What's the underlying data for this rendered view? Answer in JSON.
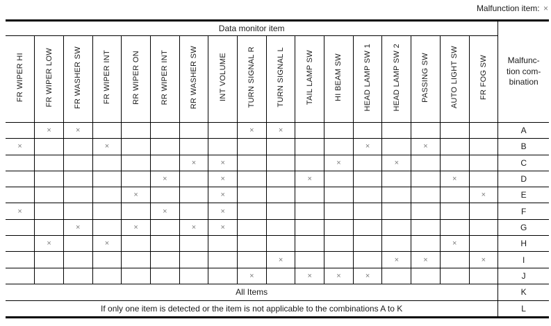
{
  "legend": {
    "label": "Malfunction item:",
    "mark": "×"
  },
  "table": {
    "title": "Data monitor item",
    "combination_header": "Malfunc-\ntion com-\nbination",
    "mark_symbol": "×",
    "columns": [
      "FR WIPER HI",
      "FR WIPER LOW",
      "FR WASHER SW",
      "FR WIPER INT",
      "RR WIPER ON",
      "RR WIPER INT",
      "RR WASHER SW",
      "INT VOLUME",
      "TURN SIGNAL R",
      "TURN SIGNAL L",
      "TAIL LAMP SW",
      "HI BEAM SW",
      "HEAD LAMP SW 1",
      "HEAD LAMP SW 2",
      "PASSING SW",
      "AUTO LIGHT SW",
      "FR FOG SW"
    ],
    "rows": [
      {
        "label": "A",
        "marks": [
          0,
          1,
          1,
          0,
          0,
          0,
          0,
          0,
          1,
          1,
          0,
          0,
          0,
          0,
          0,
          0,
          0
        ]
      },
      {
        "label": "B",
        "marks": [
          1,
          0,
          0,
          1,
          0,
          0,
          0,
          0,
          0,
          0,
          0,
          0,
          1,
          0,
          1,
          0,
          0
        ]
      },
      {
        "label": "C",
        "marks": [
          0,
          0,
          0,
          0,
          0,
          0,
          1,
          1,
          0,
          0,
          0,
          1,
          0,
          1,
          0,
          0,
          0
        ]
      },
      {
        "label": "D",
        "marks": [
          0,
          0,
          0,
          0,
          0,
          1,
          0,
          1,
          0,
          0,
          1,
          0,
          0,
          0,
          0,
          1,
          0
        ]
      },
      {
        "label": "E",
        "marks": [
          0,
          0,
          0,
          0,
          1,
          0,
          0,
          1,
          0,
          0,
          0,
          0,
          0,
          0,
          0,
          0,
          1
        ]
      },
      {
        "label": "F",
        "marks": [
          1,
          0,
          0,
          0,
          0,
          1,
          0,
          1,
          0,
          0,
          0,
          0,
          0,
          0,
          0,
          0,
          0
        ]
      },
      {
        "label": "G",
        "marks": [
          0,
          0,
          1,
          0,
          1,
          0,
          1,
          1,
          0,
          0,
          0,
          0,
          0,
          0,
          0,
          0,
          0
        ]
      },
      {
        "label": "H",
        "marks": [
          0,
          1,
          0,
          1,
          0,
          0,
          0,
          0,
          0,
          0,
          0,
          0,
          0,
          0,
          0,
          1,
          0
        ]
      },
      {
        "label": "I",
        "marks": [
          0,
          0,
          0,
          0,
          0,
          0,
          0,
          0,
          0,
          1,
          0,
          0,
          0,
          1,
          1,
          0,
          1
        ]
      },
      {
        "label": "J",
        "marks": [
          0,
          0,
          0,
          0,
          0,
          0,
          0,
          0,
          1,
          0,
          1,
          1,
          1,
          0,
          0,
          0,
          0
        ]
      }
    ],
    "summary_rows": [
      {
        "label": "K",
        "text": "All Items"
      },
      {
        "label": "L",
        "text": "If only one item is detected or the item is not applicable to the combinations A to K"
      }
    ]
  },
  "colors": {
    "border": "#000000",
    "text": "#1a1a1a",
    "mark": "#7c7c7c"
  }
}
